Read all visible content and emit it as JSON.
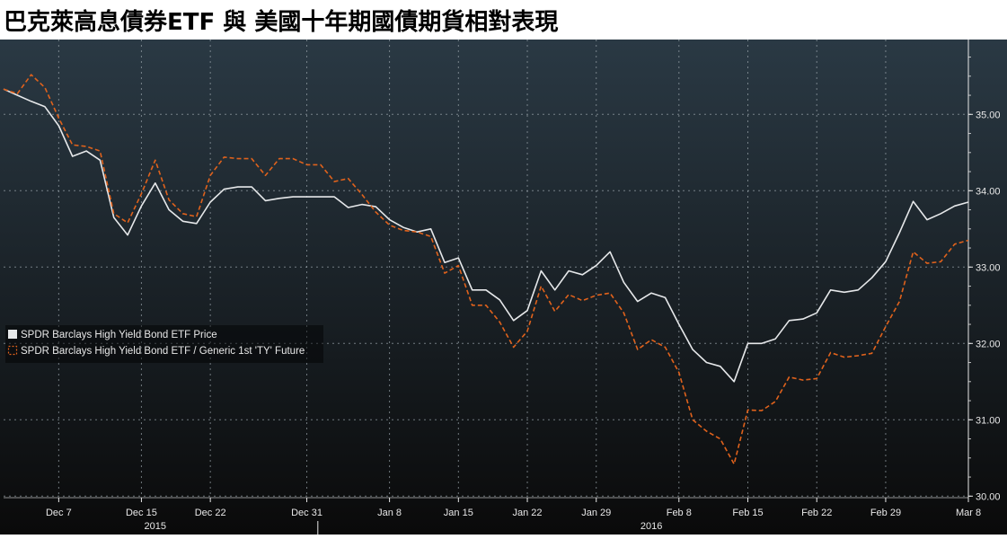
{
  "header": {
    "title": "巴克萊高息債券ETF 與 美國十年期國債期貨相對表現"
  },
  "colors": {
    "background_top": "#2a3944",
    "background_bottom": "#0a0a0a",
    "grid": "#9aa4ab",
    "etf_price": "#e6e8ea",
    "relative": "#e0621c",
    "axis_text": "#e8e8e8"
  },
  "chart_data": {
    "type": "line",
    "title": "巴克萊高息債券ETF 與 美國十年期國債期貨相對表現",
    "xlabel": "",
    "ylabel": "",
    "ylim": [
      29.98,
      35.98
    ],
    "y_ticks": [
      "30.00",
      "31.00",
      "32.00",
      "33.00",
      "34.00",
      "35.00"
    ],
    "y_tick_values": [
      30,
      31,
      32,
      33,
      34,
      35
    ],
    "x_tick_labels": [
      "Dec 7",
      "Dec 15",
      "Dec 22",
      "Dec 31",
      "Jan 8",
      "Jan 15",
      "Jan 22",
      "Jan 29",
      "Feb 8",
      "Feb 15",
      "Feb 22",
      "Feb 29",
      "Mar 8"
    ],
    "x_tick_index": [
      4,
      10,
      15,
      22,
      28,
      33,
      38,
      43,
      49,
      54,
      59,
      64,
      70
    ],
    "year_labels": [
      "2015",
      "2016"
    ],
    "year_label_index": [
      11,
      47
    ],
    "year_divider_index": 22.8,
    "grid": true,
    "legend_position": "left-middle",
    "series": [
      {
        "name": "SPDR Barclays High Yield Bond ETF Price",
        "style": "solid",
        "values": [
          35.33,
          35.25,
          35.17,
          35.1,
          34.85,
          34.45,
          34.52,
          34.4,
          33.65,
          33.42,
          33.8,
          34.1,
          33.75,
          33.6,
          33.57,
          33.85,
          34.02,
          34.05,
          34.05,
          33.87,
          33.9,
          33.92,
          33.92,
          33.92,
          33.92,
          33.78,
          33.82,
          33.79,
          33.62,
          33.52,
          33.46,
          33.5,
          33.06,
          33.12,
          32.7,
          32.7,
          32.57,
          32.3,
          32.43,
          32.95,
          32.7,
          32.95,
          32.9,
          33.02,
          33.2,
          32.8,
          32.55,
          32.66,
          32.6,
          32.25,
          31.92,
          31.75,
          31.7,
          31.5,
          32.0,
          32.0,
          32.06,
          32.3,
          32.32,
          32.4,
          32.7,
          32.67,
          32.7,
          32.86,
          33.07,
          33.45,
          33.86,
          33.62,
          33.7,
          33.8,
          33.85
        ]
      },
      {
        "name": "SPDR Barclays High Yield Bond ETF / Generic 1st 'TY' Future",
        "style": "dashed",
        "values": [
          35.33,
          35.27,
          35.52,
          35.35,
          34.95,
          34.6,
          34.58,
          34.52,
          33.7,
          33.58,
          33.96,
          34.4,
          33.88,
          33.7,
          33.66,
          34.2,
          34.44,
          34.42,
          34.42,
          34.2,
          34.42,
          34.42,
          34.34,
          34.34,
          34.12,
          34.16,
          33.95,
          33.72,
          33.55,
          33.48,
          33.46,
          33.4,
          32.92,
          33.02,
          32.5,
          32.5,
          32.28,
          31.95,
          32.16,
          32.75,
          32.42,
          32.64,
          32.56,
          32.63,
          32.66,
          32.4,
          31.92,
          32.05,
          31.95,
          31.62,
          31.0,
          30.85,
          30.75,
          30.42,
          31.13,
          31.12,
          31.24,
          31.56,
          31.52,
          31.54,
          31.88,
          31.82,
          31.84,
          31.87,
          32.22,
          32.55,
          33.2,
          33.05,
          33.07,
          33.3,
          33.35
        ]
      }
    ]
  }
}
